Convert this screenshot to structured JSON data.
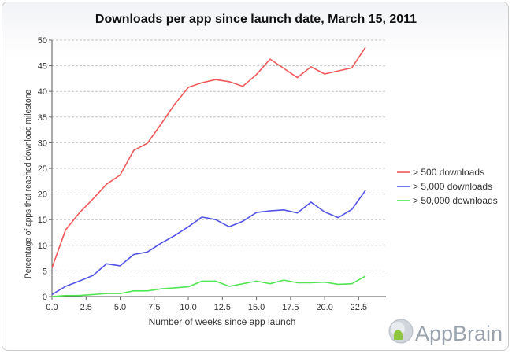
{
  "chart_data": {
    "type": "line",
    "title": "Downloads per app since launch date, March 15, 2011",
    "xlabel": "Number of weeks since app launch",
    "ylabel": "Percentage of apps that reached download milestone",
    "xlim": [
      0,
      24.5
    ],
    "ylim": [
      0,
      50
    ],
    "x_ticks": [
      0.0,
      2.5,
      5.0,
      7.5,
      10.0,
      12.5,
      15.0,
      17.5,
      20.0,
      22.5
    ],
    "x_tick_labels": [
      "0.0",
      "2.5",
      "5.0",
      "7.5",
      "10.0",
      "12.5",
      "15.0",
      "17.5",
      "20.0",
      "22.5"
    ],
    "y_ticks": [
      0,
      5,
      10,
      15,
      20,
      25,
      30,
      35,
      40,
      45,
      50
    ],
    "y_tick_labels": [
      "0",
      "5",
      "10",
      "15",
      "20",
      "25",
      "30",
      "35",
      "40",
      "45",
      "50"
    ],
    "grid": true,
    "legend_position": "right",
    "x": [
      0,
      1,
      2,
      3,
      4,
      5,
      6,
      7,
      8,
      9,
      10,
      11,
      12,
      13,
      14,
      15,
      16,
      17,
      18,
      19,
      20,
      21,
      22,
      23
    ],
    "series": [
      {
        "name": "> 500 downloads",
        "color": "#f0585a",
        "values": [
          5.6,
          13.0,
          16.3,
          19.0,
          21.9,
          23.7,
          28.5,
          29.9,
          33.6,
          37.5,
          40.8,
          41.7,
          42.3,
          41.9,
          41.0,
          43.3,
          46.3,
          44.5,
          42.7,
          44.8,
          43.4,
          44.0,
          44.6,
          48.6
        ]
      },
      {
        "name": "> 5,000 downloads",
        "color": "#5252e6",
        "values": [
          0.4,
          2.0,
          3.0,
          4.1,
          6.4,
          6.0,
          8.2,
          8.7,
          10.4,
          11.9,
          13.6,
          15.5,
          15.0,
          13.6,
          14.7,
          16.4,
          16.7,
          16.9,
          16.3,
          18.4,
          16.5,
          15.4,
          17.0,
          20.7
        ]
      },
      {
        "name": "> 50,000 downloads",
        "color": "#52e652",
        "values": [
          0.0,
          0.2,
          0.2,
          0.4,
          0.6,
          0.6,
          1.1,
          1.1,
          1.5,
          1.7,
          1.9,
          3.0,
          3.0,
          2.0,
          2.5,
          3.0,
          2.5,
          3.2,
          2.7,
          2.7,
          2.8,
          2.4,
          2.5,
          4.0
        ]
      }
    ]
  },
  "watermark": {
    "text": "AppBrain",
    "color": "#9aa3ad"
  }
}
